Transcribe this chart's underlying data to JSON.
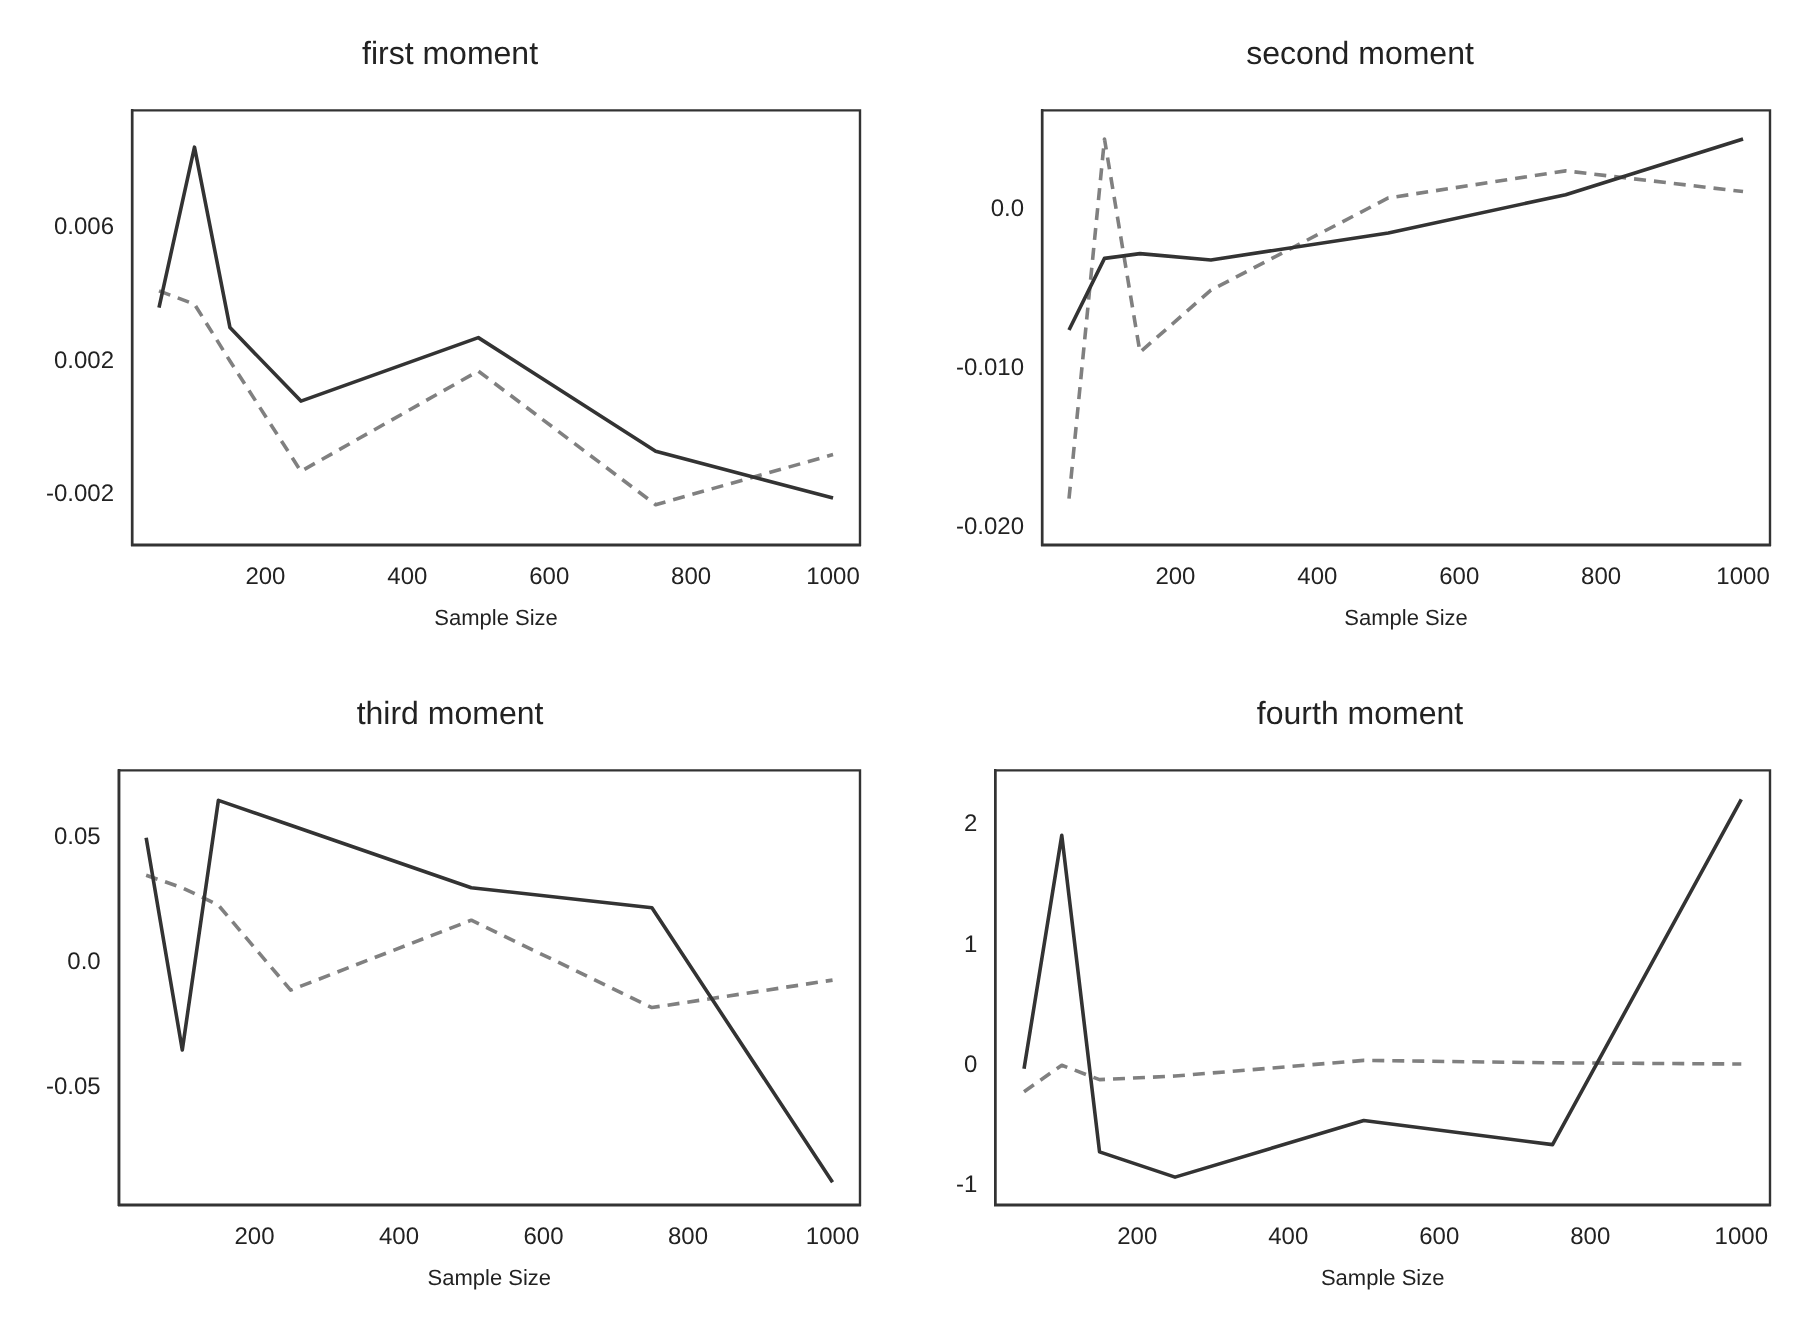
{
  "chart_data": [
    {
      "type": "line",
      "title": "first moment",
      "xlabel": "Sample Size",
      "x": [
        50,
        100,
        150,
        250,
        500,
        750,
        1000
      ],
      "xlim": [
        12,
        1038
      ],
      "xticks": [
        200,
        400,
        600,
        800,
        1000
      ],
      "ylim": [
        -0.0035,
        0.0095
      ],
      "yticks": [
        -0.002,
        0.002,
        0.006
      ],
      "grid": false,
      "legend": false,
      "marker": "none",
      "series": [
        {
          "color": "#333333",
          "line_style": "solid",
          "values": [
            0.0036,
            0.0084,
            0.003,
            0.0008,
            0.0027,
            -0.0007,
            -0.0021
          ]
        },
        {
          "color": "#808080",
          "line_style": "dashed",
          "values": [
            0.0041,
            0.0037,
            0.002,
            -0.0013,
            0.0017,
            -0.0023,
            -0.0008
          ]
        }
      ]
    },
    {
      "type": "line",
      "title": "second moment",
      "xlabel": "Sample Size",
      "x": [
        50,
        100,
        150,
        250,
        500,
        750,
        1000
      ],
      "xlim": [
        12,
        1038
      ],
      "xticks": [
        200,
        400,
        600,
        800,
        1000
      ],
      "ylim": [
        -0.0211,
        0.0062
      ],
      "yticks": [
        {
          "value": -0.02,
          "label": "-0.020"
        },
        {
          "value": -0.01,
          "label": "-0.010"
        },
        {
          "value": 0,
          "label": "0.0"
        }
      ],
      "grid": false,
      "legend": false,
      "marker": "none",
      "series": [
        {
          "color": "#333333",
          "line_style": "solid",
          "values": [
            -0.0076,
            -0.0031,
            -0.0028,
            -0.0032,
            -0.0015,
            0.0009,
            0.0044
          ]
        },
        {
          "color": "#808080",
          "line_style": "dashed",
          "values": [
            -0.0182,
            0.0044,
            -0.009,
            -0.0051,
            0.0007,
            0.0024,
            0.0011
          ]
        }
      ]
    },
    {
      "type": "line",
      "title": "third moment",
      "xlabel": "Sample Size",
      "x": [
        50,
        100,
        150,
        250,
        500,
        750,
        1000
      ],
      "xlim": [
        12,
        1038
      ],
      "xticks": [
        200,
        400,
        600,
        800,
        1000
      ],
      "ylim": [
        -0.097,
        0.077
      ],
      "yticks": [
        -0.05,
        {
          "value": 0,
          "label": "0.0"
        },
        0.05
      ],
      "grid": false,
      "legend": false,
      "marker": "none",
      "series": [
        {
          "color": "#333333",
          "line_style": "solid",
          "values": [
            0.05,
            -0.035,
            0.065,
            0.055,
            0.03,
            0.022,
            -0.088
          ]
        },
        {
          "color": "#808080",
          "line_style": "dashed",
          "values": [
            0.035,
            0.03,
            0.023,
            -0.011,
            0.017,
            -0.018,
            -0.007
          ]
        }
      ]
    },
    {
      "type": "line",
      "title": "fourth moment",
      "xlabel": "Sample Size",
      "x": [
        50,
        100,
        150,
        250,
        500,
        750,
        1000
      ],
      "xlim": [
        12,
        1038
      ],
      "xticks": [
        200,
        400,
        600,
        800,
        1000
      ],
      "ylim": [
        -1.16,
        2.45
      ],
      "yticks": [
        -1,
        0,
        1,
        2
      ],
      "grid": false,
      "legend": false,
      "marker": "none",
      "series": [
        {
          "color": "#333333",
          "line_style": "solid",
          "values": [
            -0.03,
            1.91,
            -0.72,
            -0.93,
            -0.46,
            -0.66,
            2.21
          ]
        },
        {
          "color": "#808080",
          "line_style": "dashed",
          "values": [
            -0.22,
            0.0,
            -0.12,
            -0.09,
            0.04,
            0.02,
            0.01
          ]
        }
      ]
    }
  ]
}
